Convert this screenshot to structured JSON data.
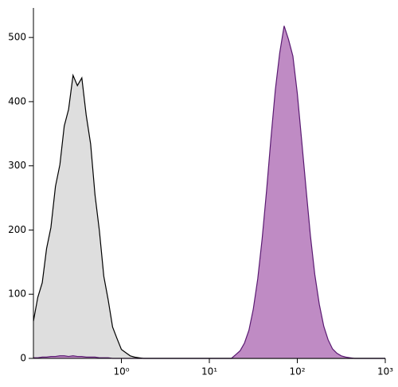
{
  "chart_data": {
    "type": "histogram",
    "xscale": "log",
    "x": [
      0.1,
      0.112,
      0.126,
      0.141,
      0.158,
      0.178,
      0.2,
      0.224,
      0.251,
      0.282,
      0.316,
      0.355,
      0.398,
      0.447,
      0.501,
      0.562,
      0.631,
      0.708,
      0.794,
      0.891,
      1,
      1.12,
      1.26,
      1.41,
      1.58,
      1.78,
      2,
      2.24,
      2.51,
      2.82,
      3.16,
      3.55,
      3.98,
      4.47,
      5.01,
      5.62,
      6.31,
      7.08,
      7.94,
      8.91,
      10,
      11.2,
      12.6,
      14.1,
      15.8,
      17.8,
      20,
      22.4,
      25.1,
      28.2,
      31.6,
      35.5,
      39.8,
      44.7,
      50.1,
      56.2,
      63.1,
      70.8,
      79.4,
      89.1,
      100,
      112,
      126,
      141,
      158,
      178,
      200,
      224,
      251,
      282,
      316,
      355,
      398,
      447,
      501,
      562,
      631,
      708,
      794,
      891,
      1000
    ],
    "series": [
      {
        "color": "#dedede",
        "line_color": "#000000",
        "values": [
          58,
          95,
          118,
          171,
          204,
          268,
          302,
          362,
          388,
          441,
          425,
          437,
          379,
          334,
          255,
          199,
          128,
          91,
          49,
          31,
          14,
          9,
          4,
          2,
          1,
          0,
          0,
          0,
          0,
          0,
          0,
          0,
          0,
          0,
          0,
          0,
          0,
          0,
          0,
          0,
          0,
          0,
          0,
          0,
          0,
          0,
          0,
          0,
          0,
          0,
          0,
          0,
          0,
          0,
          0,
          0,
          0,
          0,
          0,
          0,
          0,
          0,
          0,
          0,
          0,
          0,
          0,
          0,
          0,
          0,
          0,
          0,
          0,
          0,
          0,
          0,
          0,
          0,
          0,
          0,
          0
        ]
      },
      {
        "color": "#bf8bc4",
        "line_color": "#5a1a72",
        "values": [
          1,
          1,
          2,
          2,
          3,
          3,
          4,
          4,
          3,
          4,
          3,
          3,
          2,
          2,
          2,
          1,
          1,
          1,
          0,
          0,
          0,
          0,
          0,
          0,
          0,
          0,
          0,
          0,
          0,
          0,
          0,
          0,
          0,
          0,
          0,
          0,
          0,
          0,
          0,
          0,
          0,
          0,
          0,
          0,
          0,
          0,
          6,
          12,
          24,
          44,
          77,
          124,
          186,
          261,
          342,
          418,
          476,
          518,
          497,
          471,
          413,
          340,
          263,
          191,
          131,
          84,
          50,
          29,
          15,
          8,
          4,
          2,
          1,
          0,
          0,
          0,
          0,
          0,
          0,
          0,
          0
        ]
      }
    ],
    "xlim": [
      0.1,
      1000
    ],
    "xticks": [
      {
        "value": 1,
        "label": "10⁰"
      },
      {
        "value": 10,
        "label": "10¹"
      },
      {
        "value": 100,
        "label": "10²"
      },
      {
        "value": 1000,
        "label": "10³"
      }
    ],
    "ylim": [
      0,
      546
    ],
    "yticks": [
      0,
      100,
      200,
      300,
      400,
      500
    ]
  }
}
